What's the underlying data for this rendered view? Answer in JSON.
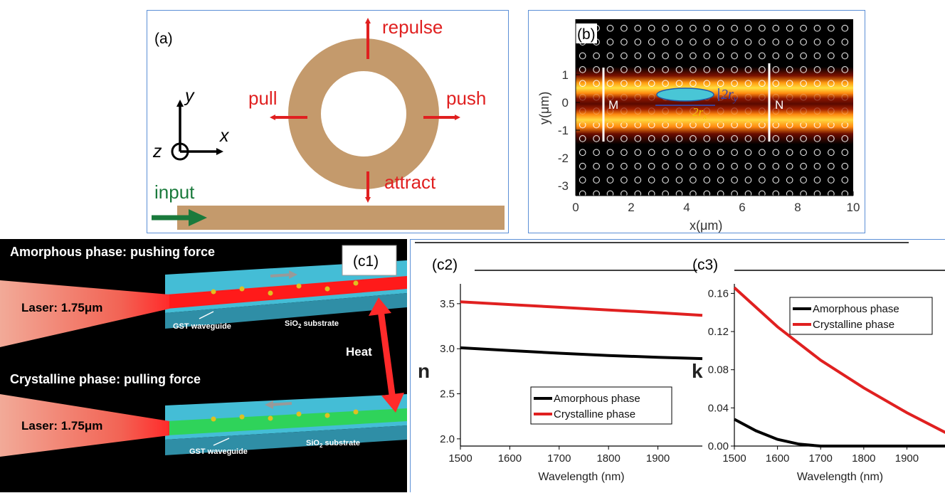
{
  "panel_a": {
    "label": "(a)",
    "axis_y": "y",
    "axis_x": "x",
    "axis_z": "z",
    "force_repulse": "repulse",
    "force_attract": "attract",
    "force_pull": "pull",
    "force_push": "push",
    "input_label": "input",
    "ring_color": "#c49a6c",
    "arrow_color": "#e02020",
    "input_color": "#1a7a3c"
  },
  "panel_b": {
    "label": "(b)",
    "marker_m": "M",
    "marker_n": "N",
    "dim_2ry": "2r",
    "dim_2ry_sub": "y",
    "dim_2rx": "2r",
    "dim_2rx_sub": "x",
    "xlabel": "x(μm)",
    "ylabel": "y(μm)",
    "x_ticks": [
      "0",
      "2",
      "4",
      "6",
      "8",
      "10"
    ],
    "y_ticks": [
      "1",
      "0",
      "-1",
      "-2",
      "-3"
    ],
    "particle_color": "#49c6d6"
  },
  "panel_c1": {
    "label": "(c1)",
    "top_title": "Amorphous phase: pushing force",
    "bottom_title": "Crystalline phase: pulling force",
    "laser_top": "Laser: 1.75μm",
    "laser_bottom": "Laser: 1.75μm",
    "waveguide_top": "GST waveguide",
    "substrate_top_pre": "SiO",
    "substrate_top_sub": "2",
    "substrate_top_post": " substrate",
    "waveguide_bottom": "GST waveguide",
    "substrate_bottom_pre": "SiO",
    "substrate_bottom_sub": "2",
    "substrate_bottom_post": " substrate",
    "heat_label": "Heat"
  },
  "chart_data": [
    {
      "id": "c2",
      "type": "line",
      "panel_label": "(c2)",
      "xlabel": "Wavelength (nm)",
      "ylabel": "n",
      "xlim": [
        1500,
        1990
      ],
      "ylim": [
        1.92,
        3.72
      ],
      "x_ticks": [
        1500,
        1600,
        1700,
        1800,
        1900
      ],
      "y_ticks": [
        2.0,
        2.5,
        3.0,
        3.5
      ],
      "y_tick_labels": [
        "2.0",
        "2.5",
        "3.0",
        "3.5"
      ],
      "legend": "lower-right",
      "series": [
        {
          "name": "Amorphous phase",
          "color": "#000000",
          "x": [
            1500,
            1600,
            1700,
            1800,
            1900,
            1990
          ],
          "y": [
            3.01,
            2.98,
            2.95,
            2.925,
            2.905,
            2.89
          ]
        },
        {
          "name": "Crystalline phase",
          "color": "#e02020",
          "x": [
            1500,
            1600,
            1700,
            1800,
            1900,
            1990
          ],
          "y": [
            3.52,
            3.49,
            3.46,
            3.43,
            3.4,
            3.37
          ]
        }
      ]
    },
    {
      "id": "c3",
      "type": "line",
      "panel_label": "(c3)",
      "xlabel": "Wavelength (nm)",
      "ylabel": "k",
      "xlim": [
        1500,
        1990
      ],
      "ylim": [
        0.0,
        0.17
      ],
      "x_ticks": [
        1500,
        1600,
        1700,
        1800,
        1900
      ],
      "y_ticks": [
        0.0,
        0.04,
        0.08,
        0.12,
        0.16
      ],
      "y_tick_labels": [
        "0.00",
        "0.04",
        "0.08",
        "0.12",
        "0.16"
      ],
      "legend": "top-right",
      "series": [
        {
          "name": "Amorphous phase",
          "color": "#000000",
          "x": [
            1500,
            1550,
            1600,
            1650,
            1700,
            1800,
            1900,
            1990
          ],
          "y": [
            0.028,
            0.016,
            0.007,
            0.002,
            0.0,
            0.0,
            0.0,
            0.0
          ]
        },
        {
          "name": "Crystalline phase",
          "color": "#e02020",
          "x": [
            1500,
            1600,
            1700,
            1800,
            1900,
            1990
          ],
          "y": [
            0.166,
            0.125,
            0.09,
            0.061,
            0.035,
            0.014
          ]
        }
      ]
    }
  ]
}
